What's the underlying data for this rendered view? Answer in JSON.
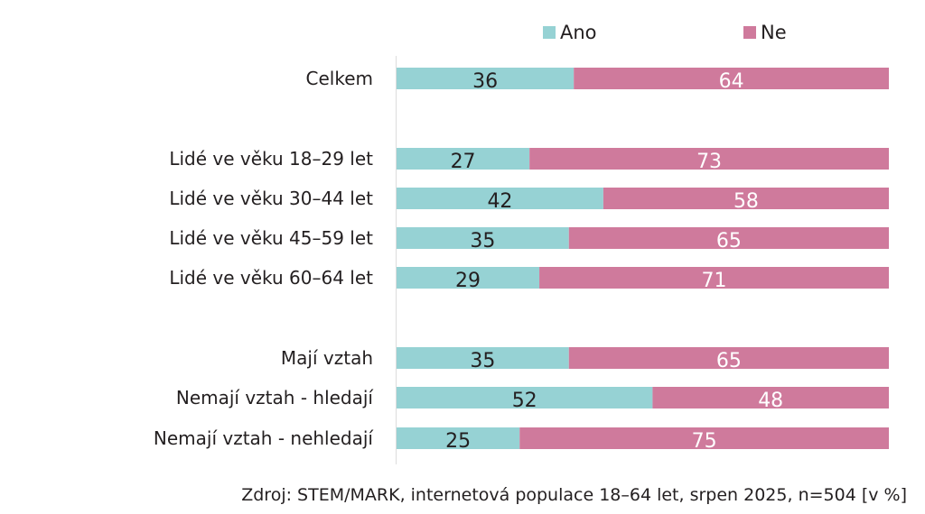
{
  "chart_data": {
    "type": "bar",
    "orientation": "horizontal",
    "stacked": true,
    "categories": [
      "Celkem",
      "Lidé ve věku 18–29 let",
      "Lidé ve věku 30–44 let",
      "Lidé ve věku 45–59 let",
      "Lidé ve věku 60–64 let",
      "Mají vztah",
      "Nemají vztah - hledají",
      "Nemají vztah - nehledají"
    ],
    "series": [
      {
        "name": "Ano",
        "color": "#96d2d4",
        "label_color": "#231f20",
        "values": [
          36,
          27,
          42,
          35,
          29,
          35,
          52,
          25
        ]
      },
      {
        "name": "Ne",
        "color": "#cf7a9c",
        "label_color": "#ffffff",
        "values": [
          64,
          73,
          58,
          65,
          71,
          65,
          48,
          75
        ]
      }
    ],
    "xlim": [
      0,
      100
    ],
    "grid": false,
    "legend_position": "top",
    "source": "Zdroj: STEM/MARK, internetová populace 18–64 let, srpen 2025, n=504 [v %]"
  }
}
